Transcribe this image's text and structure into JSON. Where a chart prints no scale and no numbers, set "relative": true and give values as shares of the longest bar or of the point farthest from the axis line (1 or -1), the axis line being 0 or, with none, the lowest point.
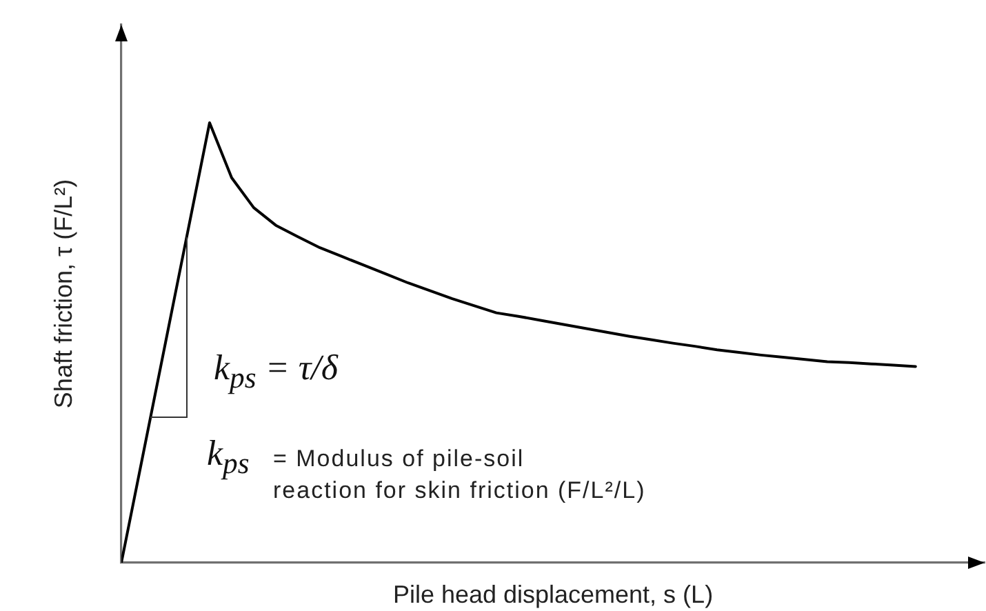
{
  "chart_data": {
    "type": "line",
    "relative": true,
    "xlabel": "Pile head displacement, s (L)",
    "ylabel": "Shaft friction, τ (F/L²)",
    "annotations": [
      "k$_{ps}$ = τ/δ",
      "k$_{ps}$ = Modulus of pile-soil\nreaction for skin friction (F/L²/L)"
    ],
    "categories": [
      null,
      null,
      null,
      null,
      null,
      null,
      null,
      null,
      null,
      null,
      null,
      null,
      null,
      null,
      null,
      null,
      null,
      null,
      null,
      null,
      null,
      null,
      null,
      null,
      null,
      null,
      null,
      null,
      null,
      null,
      null,
      null,
      null,
      null,
      null,
      null,
      null
    ],
    "values": [
      0,
      0.25,
      0.5,
      0.75,
      1,
      0.875,
      0.807,
      0.767,
      0.741,
      0.716,
      0.696,
      0.676,
      0.656,
      0.636,
      0.618,
      0.6,
      0.584,
      0.568,
      0.56,
      0.551,
      0.542,
      0.533,
      0.524,
      0.515,
      0.507,
      0.499,
      0.492,
      0.484,
      0.478,
      0.472,
      0.467,
      0.462,
      0.457,
      0.455,
      0.452,
      0.449,
      0.446
    ],
    "color": "#000000",
    "marker": "none",
    "line_style": "solid",
    "tick_labels": false
  }
}
